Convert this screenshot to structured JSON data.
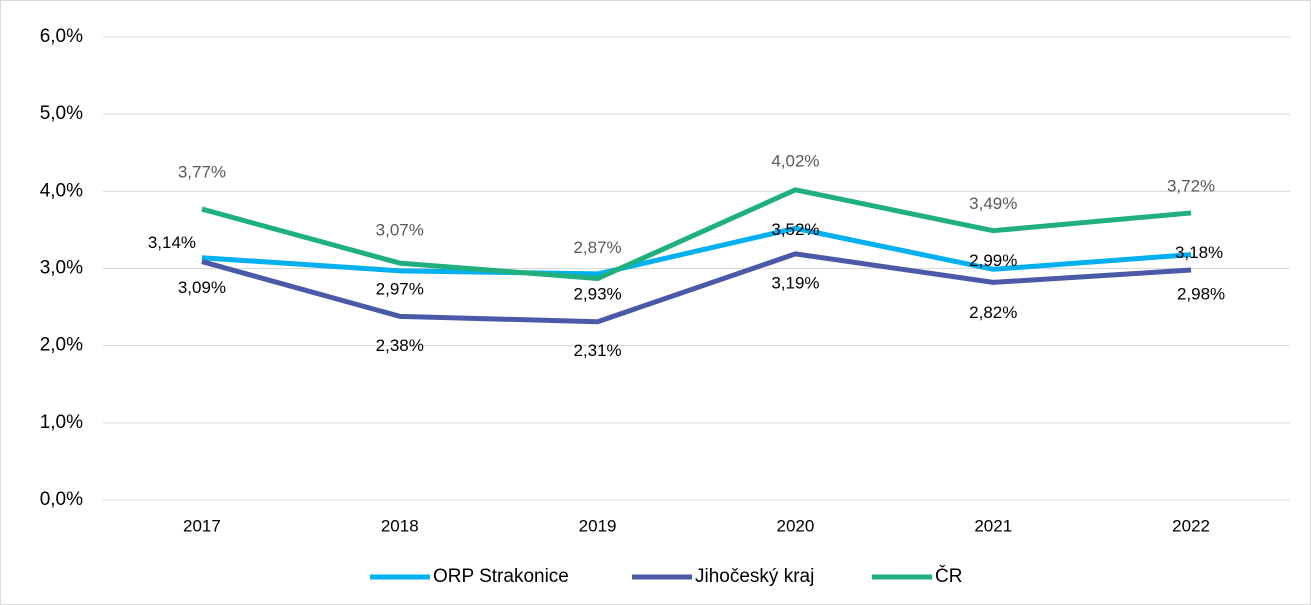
{
  "chart_data": {
    "type": "line",
    "categories": [
      "2017",
      "2018",
      "2019",
      "2020",
      "2021",
      "2022"
    ],
    "series": [
      {
        "name": "ORP Strakonice",
        "color": "#00b0f0",
        "values": [
          3.14,
          2.97,
          2.93,
          3.52,
          2.99,
          3.18
        ],
        "value_labels": [
          "3,14%",
          "2,97%",
          "2,93%",
          "3,52%",
          "2,99%",
          "3,18%"
        ]
      },
      {
        "name": "Jihočeský kraj",
        "color": "#4a5aa8",
        "values": [
          3.09,
          2.38,
          2.31,
          3.19,
          2.82,
          2.98
        ],
        "value_labels": [
          "3,09%",
          "2,38%",
          "2,31%",
          "3,19%",
          "2,82%",
          "2,98%"
        ]
      },
      {
        "name": "ČR",
        "color": "#1fb07e",
        "values": [
          3.77,
          3.07,
          2.87,
          4.02,
          3.49,
          3.72
        ],
        "value_labels": [
          "3,77%",
          "3,07%",
          "2,87%",
          "4,02%",
          "3,49%",
          "3,72%"
        ]
      }
    ],
    "ylim": [
      0,
      6
    ],
    "yticks": [
      {
        "value": 0,
        "label": "0,0%"
      },
      {
        "value": 1,
        "label": "1,0%"
      },
      {
        "value": 2,
        "label": "2,0%"
      },
      {
        "value": 3,
        "label": "3,0%"
      },
      {
        "value": 4,
        "label": "4,0%"
      },
      {
        "value": 5,
        "label": "5,0%"
      },
      {
        "value": 6,
        "label": "6,0%"
      }
    ],
    "grid": true,
    "legend": "bottom"
  }
}
